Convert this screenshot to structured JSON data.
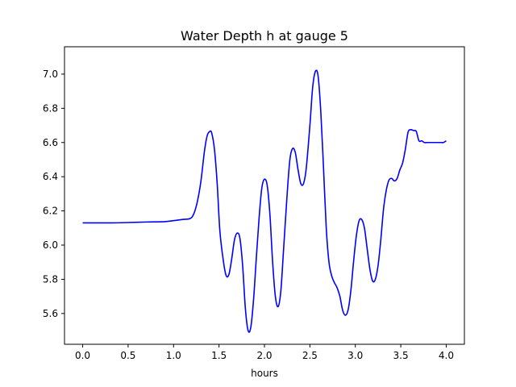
{
  "chart_data": {
    "type": "line",
    "title": "Water Depth h at gauge 5",
    "xlabel": "hours",
    "ylabel": "",
    "xlim": [
      -0.2,
      4.2
    ],
    "ylim": [
      5.42,
      7.16
    ],
    "xticks": [
      0.0,
      0.5,
      1.0,
      1.5,
      2.0,
      2.5,
      3.0,
      3.5,
      4.0
    ],
    "xtick_labels": [
      "0.0",
      "0.5",
      "1.0",
      "1.5",
      "2.0",
      "2.5",
      "3.0",
      "3.5",
      "4.0"
    ],
    "yticks": [
      5.6,
      5.8,
      6.0,
      6.2,
      6.4,
      6.6,
      6.8,
      7.0
    ],
    "ytick_labels": [
      "5.6",
      "5.8",
      "6.0",
      "6.2",
      "6.4",
      "6.6",
      "6.8",
      "7.0"
    ],
    "grid": false,
    "series_color": "#0000ff",
    "series": [
      {
        "x": [
          0.0,
          0.3,
          0.5,
          0.7,
          0.9,
          1.0,
          1.1,
          1.18,
          1.22,
          1.26,
          1.3,
          1.34,
          1.37,
          1.4,
          1.42,
          1.45,
          1.48,
          1.51,
          1.55,
          1.58,
          1.61,
          1.64,
          1.67,
          1.7,
          1.73,
          1.76,
          1.79,
          1.82,
          1.85,
          1.88,
          1.91,
          1.94,
          1.97,
          2.0,
          2.03,
          2.06,
          2.09,
          2.12,
          2.15,
          2.18,
          2.21,
          2.25,
          2.28,
          2.31,
          2.34,
          2.37,
          2.4,
          2.43,
          2.46,
          2.5,
          2.53,
          2.56,
          2.59,
          2.62,
          2.65,
          2.68,
          2.71,
          2.74,
          2.77,
          2.8,
          2.83,
          2.86,
          2.89,
          2.92,
          2.95,
          2.98,
          3.01,
          3.04,
          3.07,
          3.1,
          3.13,
          3.16,
          3.19,
          3.22,
          3.25,
          3.28,
          3.31,
          3.34,
          3.37,
          3.4,
          3.43,
          3.46,
          3.49,
          3.52,
          3.55,
          3.58,
          3.61,
          3.64,
          3.67,
          3.7,
          3.73,
          3.76,
          3.79,
          3.82,
          3.85,
          3.88,
          3.91,
          3.93,
          3.95,
          3.97,
          4.0
        ],
        "y": [
          6.13,
          6.13,
          6.132,
          6.135,
          6.137,
          6.143,
          6.15,
          6.155,
          6.18,
          6.25,
          6.37,
          6.55,
          6.64,
          6.665,
          6.655,
          6.56,
          6.36,
          6.08,
          5.9,
          5.82,
          5.83,
          5.92,
          6.03,
          6.07,
          6.04,
          5.88,
          5.63,
          5.5,
          5.52,
          5.68,
          5.92,
          6.15,
          6.33,
          6.385,
          6.35,
          6.18,
          5.9,
          5.7,
          5.64,
          5.73,
          5.97,
          6.3,
          6.5,
          6.565,
          6.54,
          6.44,
          6.36,
          6.36,
          6.45,
          6.7,
          6.92,
          7.015,
          6.99,
          6.78,
          6.45,
          6.1,
          5.9,
          5.82,
          5.78,
          5.75,
          5.7,
          5.62,
          5.59,
          5.62,
          5.73,
          5.9,
          6.05,
          6.14,
          6.15,
          6.1,
          5.98,
          5.86,
          5.79,
          5.8,
          5.88,
          6.03,
          6.21,
          6.32,
          6.38,
          6.39,
          6.375,
          6.39,
          6.44,
          6.48,
          6.56,
          6.66,
          6.675,
          6.67,
          6.665,
          6.61,
          6.61,
          6.6,
          6.6,
          6.6,
          6.6,
          6.6,
          6.6,
          6.6,
          6.6,
          6.6,
          6.61
        ]
      }
    ]
  }
}
